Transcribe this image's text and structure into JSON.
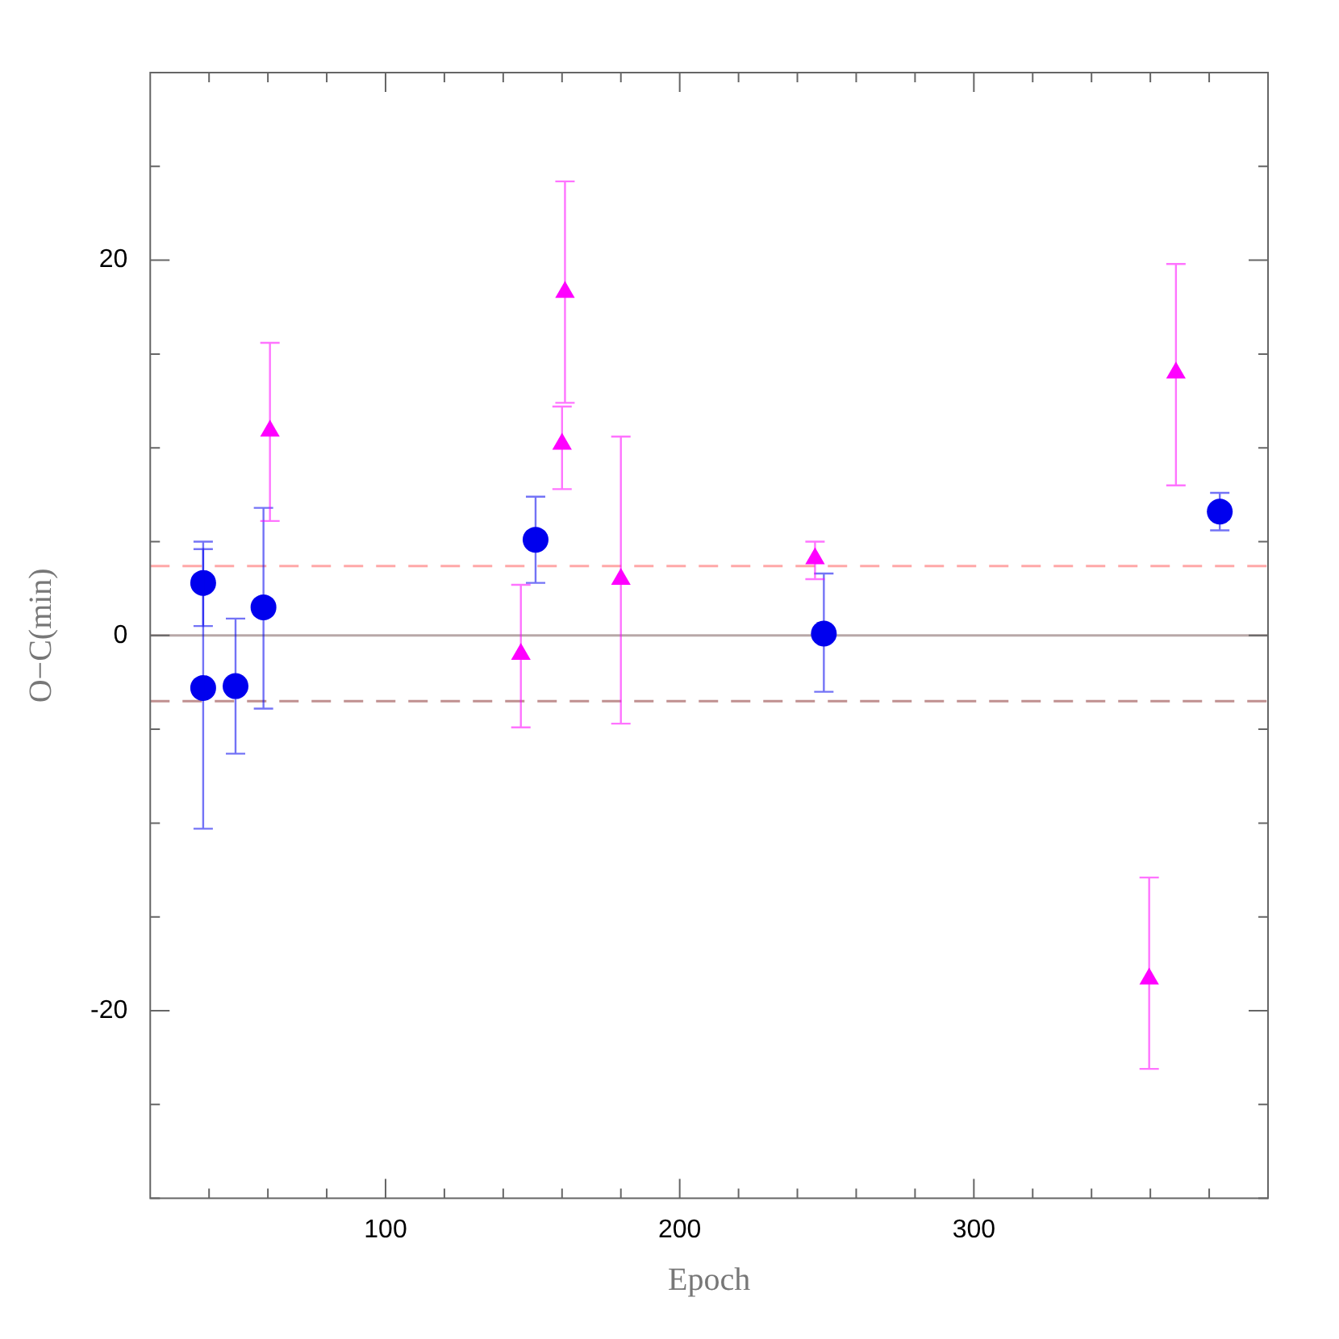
{
  "chart_data": {
    "type": "scatter",
    "xlabel": "Epoch",
    "ylabel": "O−C(min)",
    "xlim": [
      20,
      400
    ],
    "ylim": [
      -30,
      30
    ],
    "xticks": [
      {
        "value": 40,
        "label": null
      },
      {
        "value": 60,
        "label": null
      },
      {
        "value": 80,
        "label": null
      },
      100,
      {
        "value": 120,
        "label": null
      },
      {
        "value": 140,
        "label": null
      },
      {
        "value": 160,
        "label": null
      },
      {
        "value": 180,
        "label": null
      },
      200,
      {
        "value": 220,
        "label": null
      },
      {
        "value": 240,
        "label": null
      },
      {
        "value": 260,
        "label": null
      },
      {
        "value": 280,
        "label": null
      },
      300,
      {
        "value": 320,
        "label": null
      },
      {
        "value": 340,
        "label": null
      },
      {
        "value": 360,
        "label": null
      },
      {
        "value": 380,
        "label": null
      }
    ],
    "yticks": [
      {
        "value": -30,
        "label": null
      },
      {
        "value": -25,
        "label": null
      },
      -20,
      {
        "value": -15,
        "label": null
      },
      {
        "value": -10,
        "label": null
      },
      {
        "value": -5,
        "label": null
      },
      0,
      {
        "value": 5,
        "label": null
      },
      {
        "value": 10,
        "label": null
      },
      {
        "value": 15,
        "label": null
      },
      20,
      {
        "value": 25,
        "label": null
      },
      {
        "value": 30,
        "label": null
      }
    ],
    "grid": false,
    "legend": false,
    "series": [
      {
        "color": "#0000ee",
        "marker": "circle",
        "x": [
          38,
          38,
          49,
          58.5,
          151,
          249,
          383.6
        ],
        "values": [
          2.8,
          -2.8,
          -2.7,
          1.5,
          5.1,
          0.1,
          6.6
        ],
        "errors": [
          [
            0.5,
            5.0
          ],
          [
            -10.3,
            4.6
          ],
          [
            -6.3,
            0.9
          ],
          [
            -3.9,
            6.8
          ],
          [
            2.8,
            7.4
          ],
          [
            -3.0,
            3.3
          ],
          [
            5.6,
            7.6
          ]
        ]
      },
      {
        "color": "#ff00ff",
        "marker": "triangle",
        "x": [
          60.7,
          146,
          160,
          161,
          180,
          246,
          359.6,
          368.7
        ],
        "values": [
          10.9,
          -1.0,
          10.2,
          18.3,
          3.0,
          4.1,
          -18.3,
          14.0
        ],
        "errors": [
          [
            6.1,
            15.6
          ],
          [
            -4.9,
            2.7
          ],
          [
            7.8,
            12.2
          ],
          [
            12.4,
            24.2
          ],
          [
            -4.7,
            10.6
          ],
          [
            3.0,
            5.0
          ],
          [
            -23.1,
            -12.9
          ],
          [
            8.0,
            19.8
          ]
        ]
      }
    ],
    "ref_lines": [
      {
        "axis": "y",
        "value": 0,
        "color": "#b8a8a8",
        "line_style": "solid"
      },
      {
        "axis": "y",
        "value": 3.7,
        "color": "#ffa8a8",
        "line_style": "dashed"
      },
      {
        "axis": "y",
        "value": -3.5,
        "color": "#c09090",
        "line_style": "dashed"
      }
    ]
  }
}
